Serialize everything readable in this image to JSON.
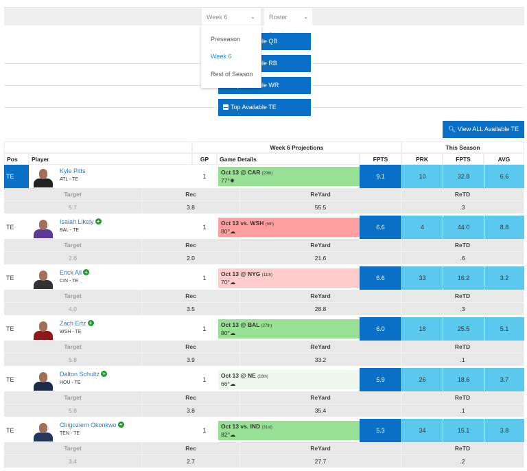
{
  "filters": {
    "week": "Week 6",
    "roster": "Roster Displayed",
    "week_options": [
      "Preseason",
      "Week 6",
      "Rest of Season"
    ],
    "selected_option": "Week 6"
  },
  "top_buttons": [
    "Top Available QB",
    "Top Available RB",
    "Top Available WR",
    "Top Available TE"
  ],
  "view_all": "View ALL Available TE",
  "table": {
    "group_headers": {
      "projections": "Week 6 Projections",
      "season": "This Season"
    },
    "columns": [
      "Pos",
      "Player",
      "GP",
      "Game Details",
      "FPTS",
      "PRK",
      "FPTS",
      "AVG"
    ],
    "sub_columns": [
      "Target",
      "Rec",
      "ReYard",
      "ReTD"
    ],
    "rows": [
      {
        "pos": "TE",
        "name": "Kyle Pitts",
        "team": "ATL - TE",
        "added": false,
        "gp": "1",
        "game": "Oct 13 @ CAR",
        "rank": "(29th)",
        "weather": "77°",
        "game_color": "#98e093",
        "fpts": "9.1",
        "prk": "10",
        "season_fpts": "32.8",
        "avg": "6.6",
        "target": "5.7",
        "rec": "3.8",
        "reyard": "55.5",
        "retd": ".3",
        "jersey": "#222222"
      },
      {
        "pos": "TE",
        "name": "Isaiah Likely",
        "team": "BAL - TE",
        "added": true,
        "gp": "1",
        "game": "Oct 13 vs. WSH",
        "rank": "(5th)",
        "weather": "80°",
        "game_color": "#ff9f9f",
        "fpts": "6.6",
        "prk": "4",
        "season_fpts": "44.0",
        "avg": "8.8",
        "target": "2.6",
        "rec": "2.0",
        "reyard": "21.6",
        "retd": ".6",
        "jersey": "#5b3b9a"
      },
      {
        "pos": "TE",
        "name": "Erick All",
        "team": "CIN - TE",
        "added": true,
        "gp": "1",
        "game": "Oct 13 @ NYG",
        "rank": "(11th)",
        "weather": "70°",
        "game_color": "#ffcccc",
        "fpts": "6.6",
        "prk": "33",
        "season_fpts": "16.2",
        "avg": "3.2",
        "target": "4.0",
        "rec": "3.5",
        "reyard": "28.8",
        "retd": ".3",
        "jersey": "#333333"
      },
      {
        "pos": "TE",
        "name": "Zach Ertz",
        "team": "WSH - TE",
        "added": true,
        "gp": "1",
        "game": "Oct 13 @ BAL",
        "rank": "(27th)",
        "weather": "80°",
        "game_color": "#98e093",
        "fpts": "6.0",
        "prk": "18",
        "season_fpts": "25.5",
        "avg": "5.1",
        "target": "5.8",
        "rec": "3.9",
        "reyard": "33.2",
        "retd": ".1",
        "jersey": "#8b1a1a"
      },
      {
        "pos": "TE",
        "name": "Dalton Schultz",
        "team": "HOU - TE",
        "added": true,
        "gp": "1",
        "game": "Oct 13 @ NE",
        "rank": "(18th)",
        "weather": "66°",
        "game_color": "#eef8ec",
        "fpts": "5.9",
        "prk": "26",
        "season_fpts": "18.6",
        "avg": "3.7",
        "target": "5.8",
        "rec": "3.8",
        "reyard": "35.4",
        "retd": ".1",
        "jersey": "#1d2a4a"
      },
      {
        "pos": "TE",
        "name": "Chigoziem Okonkwo",
        "team": "TEN - TE",
        "added": true,
        "gp": "1",
        "game": "Oct 13 vs. IND",
        "rank": "(31st)",
        "weather": "82°",
        "game_color": "#98e093",
        "fpts": "5.3",
        "prk": "34",
        "season_fpts": "15.1",
        "avg": "3.8",
        "target": "3.4",
        "rec": "2.7",
        "reyard": "27.7",
        "retd": ".2",
        "jersey": "#24385e"
      }
    ]
  },
  "colors": {
    "primary": "#0a6fc7",
    "season": "#5bc8ee",
    "selected_pos": "#0a6fc7"
  }
}
